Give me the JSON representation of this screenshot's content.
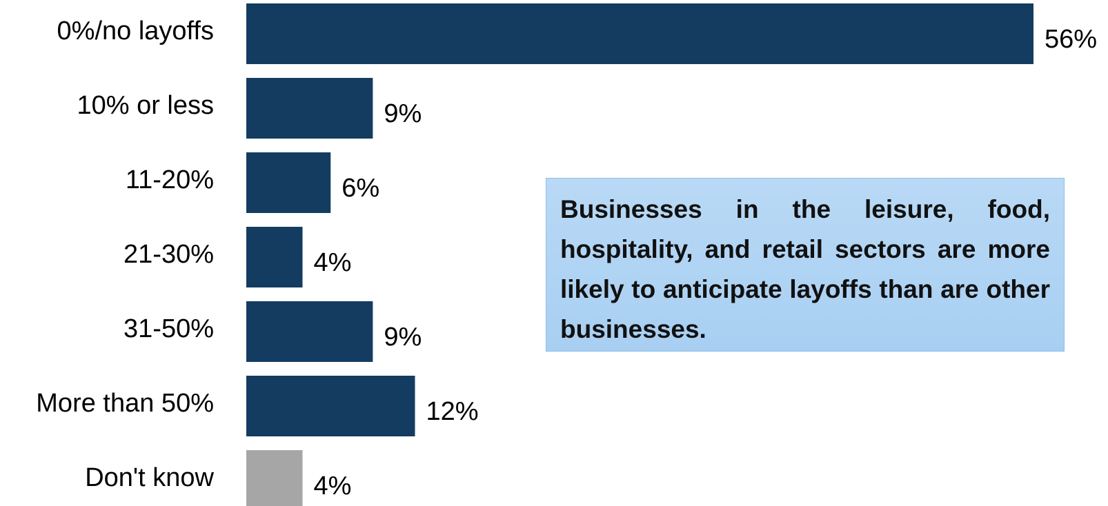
{
  "chart_data": {
    "type": "bar",
    "orientation": "horizontal",
    "categories": [
      "0%/no layoffs",
      "10% or less",
      "11-20%",
      "21-30%",
      "31-50%",
      "More than 50%",
      "Don't know"
    ],
    "values": [
      56,
      9,
      6,
      4,
      9,
      12,
      4
    ],
    "value_labels": [
      "56%",
      "9%",
      "6%",
      "4%",
      "9%",
      "12%",
      "4%"
    ],
    "bar_colors": [
      "#133c60",
      "#133c60",
      "#133c60",
      "#133c60",
      "#133c60",
      "#133c60",
      "#a6a6a6"
    ],
    "unit": "%",
    "xlim": [
      0,
      56
    ],
    "grid": false,
    "legend": "none"
  },
  "annotation": {
    "text": "Businesses in the leisure, food, hospitality, and retail sectors are more likely to anticipate layoffs than are other businesses."
  }
}
